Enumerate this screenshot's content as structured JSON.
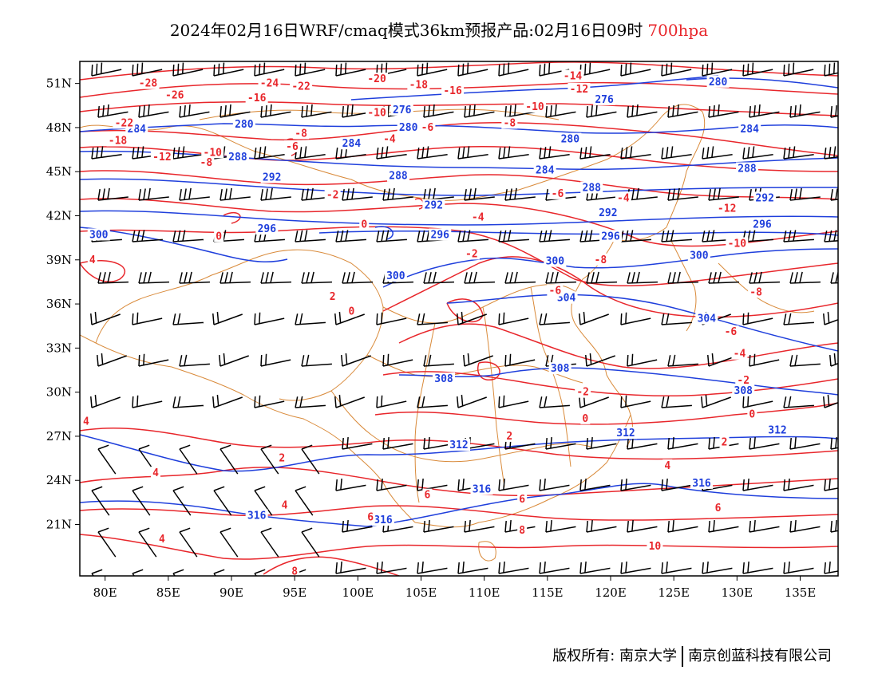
{
  "title": {
    "main": "2024年02月16日WRF/cmaq模式36km预报产品:02月16日09时",
    "level": "700hpa"
  },
  "footer": {
    "copyright": "版权所有: 南京大学",
    "company": "南京创蓝科技有限公司"
  },
  "colors": {
    "temperature": "#e8262b",
    "geopotential": "#1f3fdc",
    "boundary": "#d98a3a",
    "wind": "#000000"
  },
  "axes": {
    "lon_ticks": [
      "80E",
      "85E",
      "90E",
      "95E",
      "100E",
      "105E",
      "110E",
      "115E",
      "120E",
      "125E",
      "130E",
      "135E"
    ],
    "lat_ticks": [
      "51N",
      "48N",
      "45N",
      "42N",
      "39N",
      "36N",
      "33N",
      "30N",
      "27N",
      "24N",
      "21N"
    ],
    "lon_range": [
      78,
      138
    ],
    "lat_range": [
      17.5,
      52.5
    ]
  },
  "legend_icons": [
    "wind-barb-icon"
  ],
  "geopotential_labels": [
    {
      "text": "276",
      "lon": 103.5,
      "lat": 49.2
    },
    {
      "text": "276",
      "lon": 119.5,
      "lat": 49.9
    },
    {
      "text": "280",
      "lon": 128.5,
      "lat": 51.1
    },
    {
      "text": "280",
      "lon": 91.0,
      "lat": 48.2
    },
    {
      "text": "280",
      "lon": 104.0,
      "lat": 48.0
    },
    {
      "text": "280",
      "lon": 116.8,
      "lat": 47.2
    },
    {
      "text": "284",
      "lon": 82.5,
      "lat": 47.9
    },
    {
      "text": "284",
      "lon": 99.5,
      "lat": 46.9
    },
    {
      "text": "284",
      "lon": 114.8,
      "lat": 45.1
    },
    {
      "text": "284",
      "lon": 131.0,
      "lat": 47.9
    },
    {
      "text": "288",
      "lon": 90.5,
      "lat": 46.0
    },
    {
      "text": "288",
      "lon": 103.2,
      "lat": 44.7
    },
    {
      "text": "288",
      "lon": 118.5,
      "lat": 43.9
    },
    {
      "text": "288",
      "lon": 130.8,
      "lat": 45.2
    },
    {
      "text": "292",
      "lon": 93.2,
      "lat": 44.6
    },
    {
      "text": "292",
      "lon": 106.0,
      "lat": 42.7
    },
    {
      "text": "292",
      "lon": 119.8,
      "lat": 42.2
    },
    {
      "text": "292",
      "lon": 132.2,
      "lat": 43.2
    },
    {
      "text": "296",
      "lon": 92.8,
      "lat": 41.1
    },
    {
      "text": "296",
      "lon": 106.5,
      "lat": 40.7
    },
    {
      "text": "296",
      "lon": 120.0,
      "lat": 40.6
    },
    {
      "text": "296",
      "lon": 132.0,
      "lat": 41.4
    },
    {
      "text": "300",
      "lon": 79.5,
      "lat": 40.7
    },
    {
      "text": "300",
      "lon": 103.0,
      "lat": 37.9
    },
    {
      "text": "300",
      "lon": 115.6,
      "lat": 38.9
    },
    {
      "text": "300",
      "lon": 127.0,
      "lat": 39.3
    },
    {
      "text": "304",
      "lon": 116.5,
      "lat": 36.4
    },
    {
      "text": "304",
      "lon": 127.6,
      "lat": 35.0
    },
    {
      "text": "308",
      "lon": 106.8,
      "lat": 30.9
    },
    {
      "text": "308",
      "lon": 116.0,
      "lat": 31.6
    },
    {
      "text": "308",
      "lon": 130.5,
      "lat": 30.1
    },
    {
      "text": "312",
      "lon": 108.0,
      "lat": 26.4
    },
    {
      "text": "312",
      "lon": 121.2,
      "lat": 27.2
    },
    {
      "text": "312",
      "lon": 133.2,
      "lat": 27.4
    },
    {
      "text": "316",
      "lon": 109.8,
      "lat": 23.4
    },
    {
      "text": "316",
      "lon": 127.2,
      "lat": 23.8
    },
    {
      "text": "316",
      "lon": 92.0,
      "lat": 21.6
    },
    {
      "text": "316",
      "lon": 102.0,
      "lat": 21.3
    }
  ],
  "temperature_labels": [
    {
      "text": "-28",
      "lon": 83.4,
      "lat": 51.0
    },
    {
      "text": "-26",
      "lon": 85.5,
      "lat": 50.2
    },
    {
      "text": "-24",
      "lon": 93.0,
      "lat": 51.0
    },
    {
      "text": "-22",
      "lon": 95.5,
      "lat": 50.8
    },
    {
      "text": "-20",
      "lon": 101.5,
      "lat": 51.3
    },
    {
      "text": "-18",
      "lon": 104.8,
      "lat": 50.9
    },
    {
      "text": "-16",
      "lon": 92.0,
      "lat": 50.0
    },
    {
      "text": "-16",
      "lon": 107.5,
      "lat": 50.5
    },
    {
      "text": "-14",
      "lon": 117.0,
      "lat": 51.5
    },
    {
      "text": "-12",
      "lon": 117.5,
      "lat": 50.6
    },
    {
      "text": "-10",
      "lon": 101.5,
      "lat": 49.0
    },
    {
      "text": "-10",
      "lon": 114.0,
      "lat": 49.4
    },
    {
      "text": "-8",
      "lon": 112.0,
      "lat": 48.3
    },
    {
      "text": "-8",
      "lon": 95.5,
      "lat": 47.6
    },
    {
      "text": "-6",
      "lon": 105.5,
      "lat": 48.0
    },
    {
      "text": "-4",
      "lon": 102.5,
      "lat": 47.2
    },
    {
      "text": "-22",
      "lon": 81.5,
      "lat": 48.3
    },
    {
      "text": "-18",
      "lon": 81.0,
      "lat": 47.1
    },
    {
      "text": "-12",
      "lon": 84.5,
      "lat": 46.0
    },
    {
      "text": "-10",
      "lon": 88.5,
      "lat": 46.3
    },
    {
      "text": "-8",
      "lon": 88.0,
      "lat": 45.6
    },
    {
      "text": "-6",
      "lon": 94.8,
      "lat": 46.7
    },
    {
      "text": "-4",
      "lon": 121.0,
      "lat": 43.2
    },
    {
      "text": "-2",
      "lon": 98.0,
      "lat": 43.4
    },
    {
      "text": "-4",
      "lon": 109.5,
      "lat": 41.9
    },
    {
      "text": "-6",
      "lon": 115.8,
      "lat": 43.5
    },
    {
      "text": "0",
      "lon": 89.0,
      "lat": 40.6
    },
    {
      "text": "0",
      "lon": 100.5,
      "lat": 41.4
    },
    {
      "text": "-2",
      "lon": 109.0,
      "lat": 39.4
    },
    {
      "text": "-8",
      "lon": 119.2,
      "lat": 39.0
    },
    {
      "text": "-12",
      "lon": 129.2,
      "lat": 42.5
    },
    {
      "text": "-10",
      "lon": 130.0,
      "lat": 40.1
    },
    {
      "text": "-8",
      "lon": 131.5,
      "lat": 36.8
    },
    {
      "text": "-6",
      "lon": 115.6,
      "lat": 36.9
    },
    {
      "text": "-6",
      "lon": 129.5,
      "lat": 34.1
    },
    {
      "text": "-4",
      "lon": 130.2,
      "lat": 32.6
    },
    {
      "text": "-2",
      "lon": 130.5,
      "lat": 30.8
    },
    {
      "text": "-2",
      "lon": 117.8,
      "lat": 30.0
    },
    {
      "text": "0",
      "lon": 118.0,
      "lat": 28.2
    },
    {
      "text": "0",
      "lon": 131.2,
      "lat": 28.5
    },
    {
      "text": "2",
      "lon": 129.0,
      "lat": 26.6
    },
    {
      "text": "2",
      "lon": 98.0,
      "lat": 36.5
    },
    {
      "text": "0",
      "lon": 99.5,
      "lat": 35.5
    },
    {
      "text": "4",
      "lon": 79.0,
      "lat": 39.0
    },
    {
      "text": "4",
      "lon": 78.5,
      "lat": 28.0
    },
    {
      "text": "4",
      "lon": 84.0,
      "lat": 24.5
    },
    {
      "text": "2",
      "lon": 94.0,
      "lat": 25.5
    },
    {
      "text": "4",
      "lon": 94.2,
      "lat": 22.3
    },
    {
      "text": "6",
      "lon": 101.0,
      "lat": 21.5
    },
    {
      "text": "6",
      "lon": 113.0,
      "lat": 22.7
    },
    {
      "text": "6",
      "lon": 105.5,
      "lat": 23.0
    },
    {
      "text": "4",
      "lon": 124.5,
      "lat": 25.0
    },
    {
      "text": "6",
      "lon": 128.5,
      "lat": 22.1
    },
    {
      "text": "8",
      "lon": 113.0,
      "lat": 20.6
    },
    {
      "text": "10",
      "lon": 123.5,
      "lat": 19.5
    },
    {
      "text": "4",
      "lon": 84.5,
      "lat": 20.0
    },
    {
      "text": "8",
      "lon": 95.0,
      "lat": 17.8
    },
    {
      "text": "2",
      "lon": 112.0,
      "lat": 27.0
    }
  ]
}
